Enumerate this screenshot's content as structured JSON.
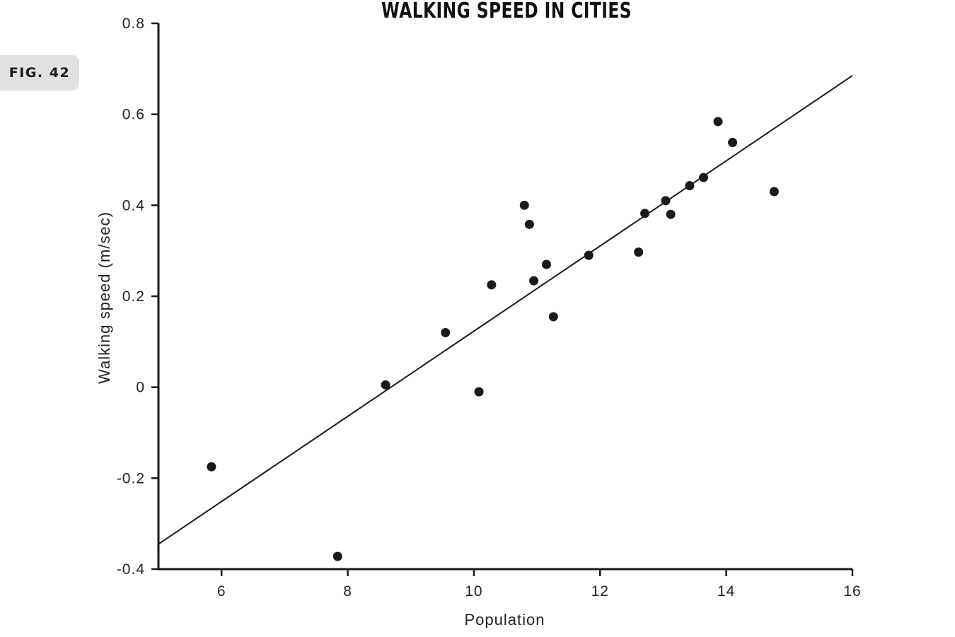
{
  "figure_label": "FIG. 42",
  "chart_data": {
    "type": "scatter",
    "title": "WALKING SPEED IN CITIES",
    "xlabel": "Population",
    "ylabel": "Walking speed (m/sec)",
    "xlim": [
      5,
      16
    ],
    "ylim": [
      -0.4,
      0.8
    ],
    "x_ticks": [
      6,
      8,
      10,
      12,
      14,
      16
    ],
    "y_ticks": [
      -0.4,
      -0.2,
      0,
      0.2,
      0.4,
      0.6,
      0.8
    ],
    "x_tick_labels": [
      "6",
      "8",
      "10",
      "12",
      "14",
      "16"
    ],
    "y_tick_labels": [
      "-0.4",
      "-0.2",
      "0",
      "0.2",
      "0.4",
      "0.6",
      "0.8"
    ],
    "grid": false,
    "colors": {
      "points": "#1a1a1a",
      "line": "#1a1a1a",
      "axes": "#1a1a1a"
    },
    "points": [
      {
        "x": 5.84,
        "y": -0.175
      },
      {
        "x": 7.84,
        "y": -0.372
      },
      {
        "x": 8.6,
        "y": 0.005
      },
      {
        "x": 9.55,
        "y": 0.12
      },
      {
        "x": 10.08,
        "y": -0.01
      },
      {
        "x": 10.28,
        "y": 0.225
      },
      {
        "x": 10.8,
        "y": 0.4
      },
      {
        "x": 10.88,
        "y": 0.358
      },
      {
        "x": 10.95,
        "y": 0.234
      },
      {
        "x": 11.15,
        "y": 0.27
      },
      {
        "x": 11.26,
        "y": 0.155
      },
      {
        "x": 11.82,
        "y": 0.29
      },
      {
        "x": 12.61,
        "y": 0.297
      },
      {
        "x": 12.71,
        "y": 0.382
      },
      {
        "x": 13.04,
        "y": 0.41
      },
      {
        "x": 13.12,
        "y": 0.38
      },
      {
        "x": 13.42,
        "y": 0.443
      },
      {
        "x": 13.64,
        "y": 0.461
      },
      {
        "x": 13.87,
        "y": 0.584
      },
      {
        "x": 14.1,
        "y": 0.538
      },
      {
        "x": 14.76,
        "y": 0.43
      }
    ],
    "trend_line": {
      "type": "linear",
      "points": [
        {
          "x": 5,
          "y": -0.345
        },
        {
          "x": 16,
          "y": 0.685
        }
      ]
    }
  }
}
